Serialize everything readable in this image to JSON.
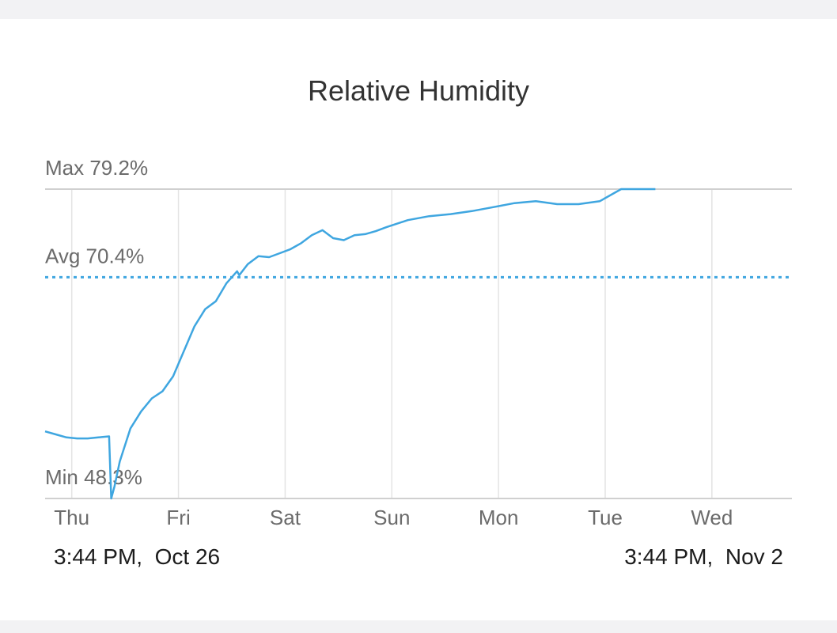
{
  "chart_data": {
    "type": "line",
    "title": "Relative Humidity",
    "ylim": [
      48.3,
      79.2
    ],
    "x_range_days": [
      0,
      7
    ],
    "categories": [
      "Thu",
      "Fri",
      "Sat",
      "Sun",
      "Mon",
      "Tue",
      "Wed"
    ],
    "category_day_offsets": [
      0.25,
      1.25,
      2.25,
      3.25,
      4.25,
      5.25,
      6.25
    ],
    "reference_lines": [
      {
        "label": "Max 79.2%",
        "value": 79.2,
        "style": "solid"
      },
      {
        "label": "Avg 70.4%",
        "value": 70.4,
        "style": "dotted"
      },
      {
        "label": "Min 48.3%",
        "value": 48.3,
        "style": "solid"
      }
    ],
    "series": [
      {
        "color": "#3fa6e0",
        "x": [
          0.0,
          0.1,
          0.2,
          0.3,
          0.4,
          0.5,
          0.6,
          0.62,
          0.65,
          0.7,
          0.8,
          0.9,
          1.0,
          1.1,
          1.2,
          1.3,
          1.4,
          1.5,
          1.6,
          1.7,
          1.8,
          1.82,
          1.9,
          2.0,
          2.1,
          2.2,
          2.3,
          2.4,
          2.5,
          2.6,
          2.7,
          2.8,
          2.9,
          3.0,
          3.1,
          3.2,
          3.4,
          3.6,
          3.8,
          4.0,
          4.2,
          4.4,
          4.6,
          4.8,
          5.0,
          5.2,
          5.4,
          5.6,
          5.72
        ],
        "values": [
          55.0,
          54.7,
          54.4,
          54.3,
          54.3,
          54.4,
          54.5,
          48.3,
          49.5,
          52.0,
          55.3,
          57.0,
          58.3,
          59.0,
          60.5,
          63.0,
          65.5,
          67.2,
          68.0,
          69.8,
          71.0,
          70.6,
          71.7,
          72.5,
          72.4,
          72.8,
          73.2,
          73.8,
          74.6,
          75.1,
          74.3,
          74.1,
          74.6,
          74.7,
          75.0,
          75.4,
          76.1,
          76.5,
          76.7,
          77.0,
          77.4,
          77.8,
          78.0,
          77.7,
          77.7,
          78.0,
          79.2,
          79.2,
          79.2
        ]
      }
    ],
    "grid": true,
    "legend": "none"
  },
  "footer": {
    "start_label": "3:44 PM,  Oct 26",
    "end_label": "3:44 PM,  Nov 2"
  }
}
